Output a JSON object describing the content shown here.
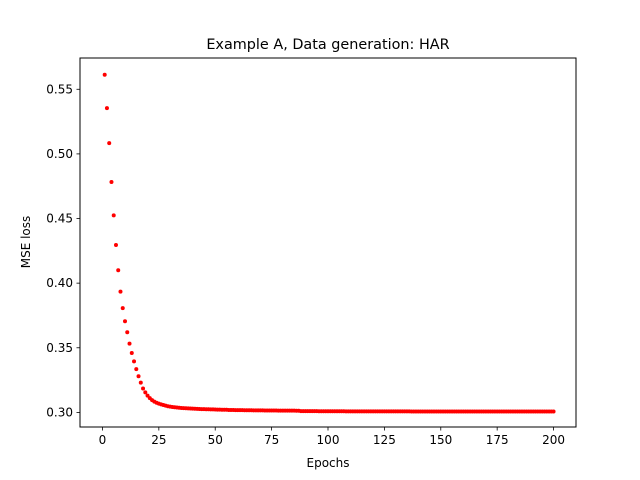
{
  "chart_data": {
    "type": "scatter",
    "title": "Example A, Data generation: HAR",
    "xlabel": "Epochs",
    "ylabel": "MSE loss",
    "xlim": [
      -9.95,
      209.95
    ],
    "ylim": [
      0.2887,
      0.5742
    ],
    "x_ticks": [
      0,
      25,
      50,
      75,
      100,
      125,
      150,
      175,
      200
    ],
    "y_ticks": [
      0.3,
      0.35,
      0.4,
      0.45,
      0.5,
      0.55
    ],
    "y_tick_labels": [
      "0.30",
      "0.35",
      "0.40",
      "0.45",
      "0.50",
      "0.55"
    ],
    "grid": false,
    "legend": "none",
    "marker_color": "#ff0000",
    "series": [
      {
        "x_start": 1,
        "x_step": 1,
        "values": [
          0.5612,
          0.5354,
          0.5083,
          0.4783,
          0.4524,
          0.4295,
          0.41,
          0.3934,
          0.3807,
          0.3705,
          0.362,
          0.3532,
          0.346,
          0.3395,
          0.3335,
          0.328,
          0.323,
          0.3185,
          0.3155,
          0.313,
          0.311,
          0.3095,
          0.3083,
          0.3075,
          0.3068,
          0.3062,
          0.3057,
          0.3052,
          0.3048,
          0.3045,
          0.3042,
          0.304,
          0.3038,
          0.3036,
          0.3034,
          0.3033,
          0.3032,
          0.3031,
          0.303,
          0.3029,
          0.3028,
          0.3027,
          0.3026,
          0.3025,
          0.3025,
          0.3024,
          0.3024,
          0.3023,
          0.3023,
          0.3022,
          0.3021,
          0.3021,
          0.302,
          0.302,
          0.302,
          0.3019,
          0.3019,
          0.3019,
          0.3018,
          0.3018,
          0.3018,
          0.3018,
          0.3017,
          0.3017,
          0.3017,
          0.3017,
          0.3016,
          0.3016,
          0.3016,
          0.3016,
          0.3016,
          0.3015,
          0.3015,
          0.3015,
          0.3015,
          0.3015,
          0.3015,
          0.3014,
          0.3014,
          0.3014,
          0.3014,
          0.3014,
          0.3014,
          0.3014,
          0.3014,
          0.3013,
          0.3013,
          0.301,
          0.301,
          0.301,
          0.301,
          0.301,
          0.301,
          0.301,
          0.301,
          0.3009,
          0.3009,
          0.3009,
          0.3009,
          0.3009,
          0.3009,
          0.3009,
          0.3009,
          0.3009,
          0.3009,
          0.3009,
          0.3009,
          0.3008,
          0.3008,
          0.3008,
          0.3008,
          0.3008,
          0.3008,
          0.3008,
          0.3008,
          0.3008,
          0.3008,
          0.3008,
          0.3008,
          0.3008,
          0.3008,
          0.3008,
          0.3008,
          0.3008,
          0.3008,
          0.3008,
          0.3008,
          0.3008,
          0.3008,
          0.3008,
          0.3008,
          0.3008,
          0.3008,
          0.3008,
          0.3008,
          0.3008,
          0.3007,
          0.3007,
          0.3007,
          0.3007,
          0.3007,
          0.3007,
          0.3007,
          0.3007,
          0.3007,
          0.3007,
          0.3007,
          0.3007,
          0.3007,
          0.3007,
          0.3007,
          0.3007,
          0.3007,
          0.3007,
          0.3007,
          0.3007,
          0.3007,
          0.3007,
          0.3007,
          0.3007,
          0.3007,
          0.3007,
          0.3007,
          0.3007,
          0.3007,
          0.3007,
          0.3007,
          0.3007,
          0.3007,
          0.3007,
          0.3007,
          0.3007,
          0.3007,
          0.3007,
          0.3007,
          0.3007,
          0.3007,
          0.3007,
          0.3007,
          0.3007,
          0.3007,
          0.3007,
          0.3007,
          0.3007,
          0.3007,
          0.3007,
          0.3007,
          0.3007,
          0.3007,
          0.3007,
          0.3007,
          0.3007,
          0.3007,
          0.3007,
          0.3007,
          0.3007,
          0.3007,
          0.3007,
          0.3007,
          0.3007
        ]
      }
    ]
  }
}
